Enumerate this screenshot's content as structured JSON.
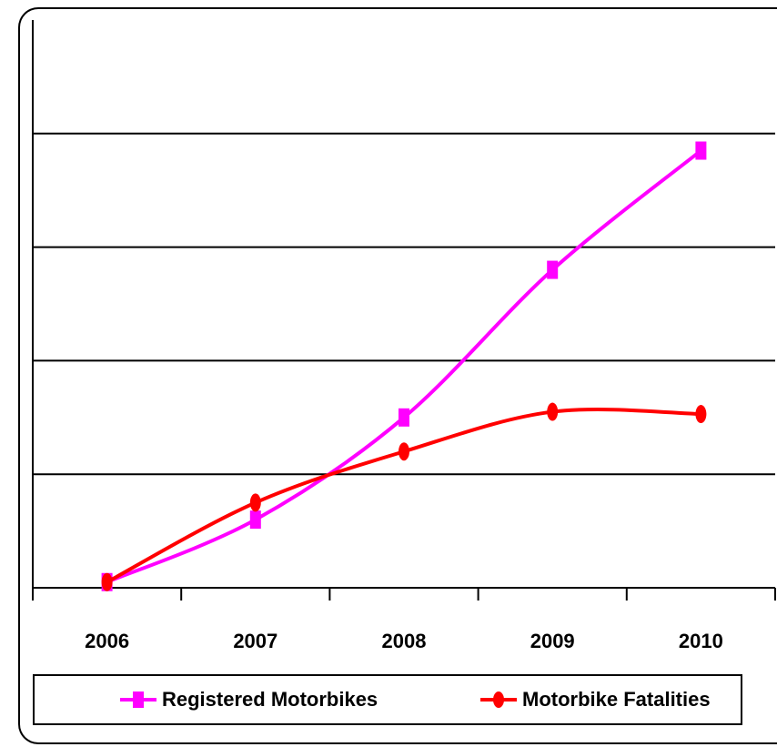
{
  "chart_data": {
    "type": "line",
    "categories": [
      "2006",
      "2007",
      "2008",
      "2009",
      "2010"
    ],
    "ylim": [
      0,
      5
    ],
    "grid": true,
    "series": [
      {
        "name": "Registered Motorbikes",
        "values": [
          0.05,
          0.6,
          1.5,
          2.8,
          3.85
        ],
        "color": "#ff00ff",
        "marker": "square"
      },
      {
        "name": "Motorbike Fatalities",
        "values": [
          0.05,
          0.75,
          1.2,
          1.55,
          1.53
        ],
        "color": "#ff0000",
        "marker": "circle"
      }
    ],
    "legend_position": "bottom",
    "title": "",
    "xlabel": "",
    "ylabel": ""
  }
}
